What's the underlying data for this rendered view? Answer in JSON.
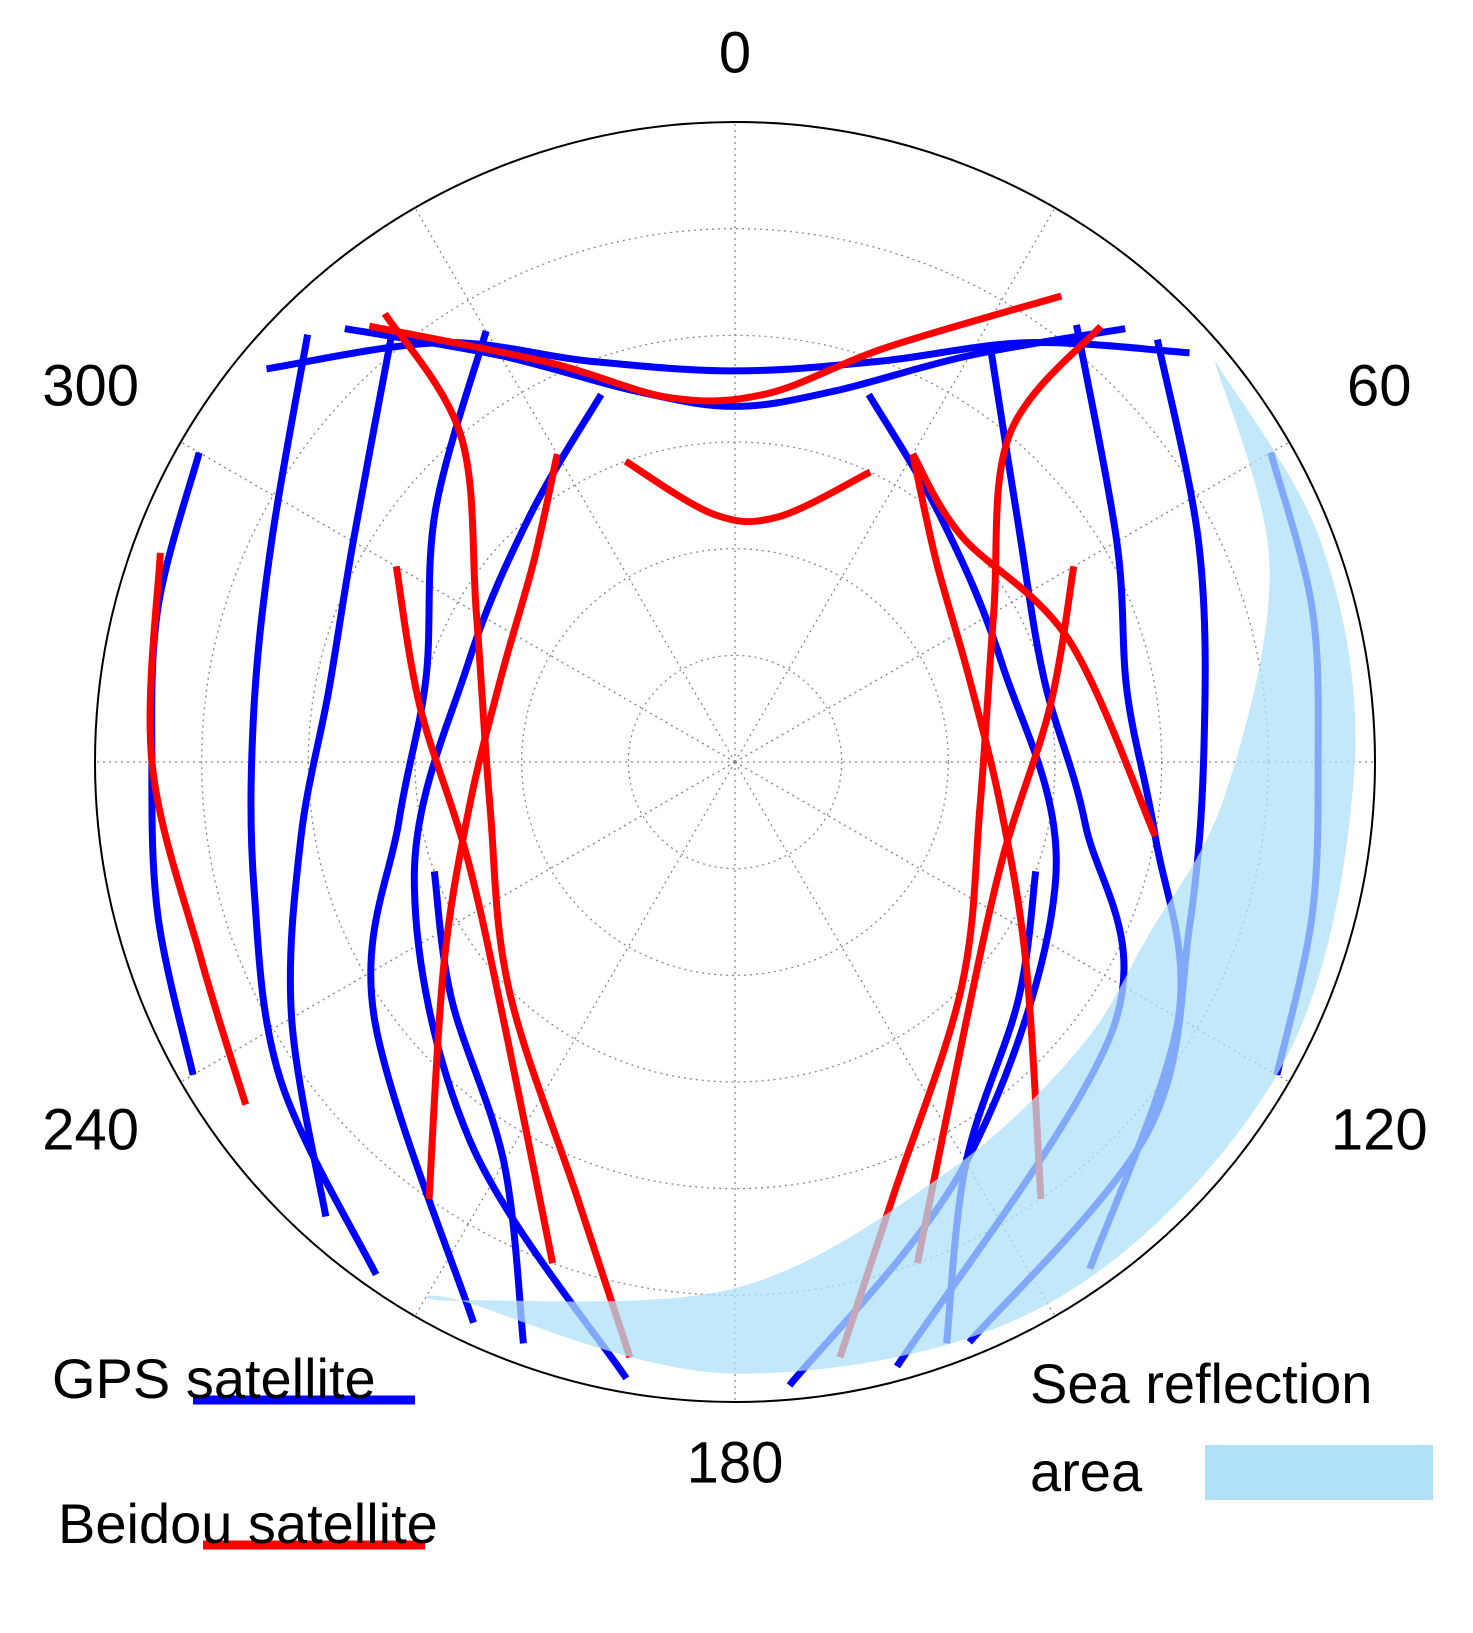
{
  "chart_data": {
    "type": "polar",
    "rlim": [
      90,
      0
    ],
    "rticks": [
      15,
      30,
      45,
      60,
      75
    ],
    "thetagrid": [
      0,
      30,
      60,
      90,
      120,
      150,
      180,
      210,
      240,
      270,
      300,
      330
    ],
    "thetaticks": [
      0,
      60,
      120,
      180,
      240,
      300
    ],
    "series": [
      {
        "name": "GPS satellite",
        "color": "#0000ff",
        "tracks": [
          {
            "azimuth": [
              318,
              330,
              345,
              0,
              15,
              30,
              42
            ],
            "elevation": [
              8,
              24,
              36,
              40,
              36,
              24,
              8
            ]
          },
          {
            "azimuth": [
              310,
              325,
              340,
              0,
              20,
              35,
              48
            ],
            "elevation": [
              4,
              18,
              30,
              35,
              30,
              18,
              4
            ]
          },
          {
            "azimuth": [
              322,
              300,
              280,
              260,
              240,
              222
            ],
            "elevation": [
              12,
              28,
              32,
              28,
              18,
              4
            ]
          },
          {
            "azimuth": [
              315,
              295,
              275,
              255,
              235,
              215
            ],
            "elevation": [
              5,
              18,
              22,
              20,
              12,
              2
            ]
          },
          {
            "azimuth": [
              330,
              310,
              285,
              260,
              235,
              205
            ],
            "elevation": [
              20,
              35,
              45,
              42,
              28,
              3
            ]
          },
          {
            "azimuth": [
              38,
              60,
              80,
              100,
              120,
              145
            ],
            "elevation": [
              12,
              28,
              34,
              30,
              18,
              3
            ]
          },
          {
            "azimuth": [
              45,
              65,
              88,
              110,
              132,
              158
            ],
            "elevation": [
              6,
              18,
              24,
              22,
              12,
              2
            ]
          },
          {
            "azimuth": [
              32,
              50,
              75,
              100,
              125,
              165
            ],
            "elevation": [
              22,
              38,
              45,
              40,
              25,
              2
            ]
          },
          {
            "azimuth": [
              20,
              40,
              70,
              110,
              150,
              175
            ],
            "elevation": [
              35,
              45,
              50,
              42,
              25,
              2
            ]
          },
          {
            "azimuth": [
              340,
              320,
              290,
              250,
              215,
              190
            ],
            "elevation": [
              35,
              45,
              50,
              42,
              25,
              2
            ]
          },
          {
            "azimuth": [
              300,
              285,
              270,
              255,
              240
            ],
            "elevation": [
              3,
              6,
              8,
              6,
              2
            ]
          },
          {
            "azimuth": [
              60,
              75,
              90,
              105,
              120
            ],
            "elevation": [
              3,
              6,
              8,
              6,
              2
            ]
          },
          {
            "azimuth": [
              200,
              210,
              230,
              250
            ],
            "elevation": [
              3,
              25,
              38,
              45
            ]
          },
          {
            "azimuth": [
              160,
              150,
              130,
              110
            ],
            "elevation": [
              3,
              25,
              38,
              45
            ]
          }
        ]
      },
      {
        "name": "Beidou satellite",
        "color": "#ff0000",
        "tracks": [
          {
            "azimuth": [
              320,
              335,
              350,
              5,
              20,
              35
            ],
            "elevation": [
              10,
              28,
              38,
              38,
              28,
              10
            ]
          },
          {
            "azimuth": [
              322,
              320,
              300,
              260,
              225,
              200,
              190
            ],
            "elevation": [
              10,
              30,
              48,
              55,
              45,
              25,
              5
            ]
          },
          {
            "azimuth": [
              40,
              40,
              60,
              100,
              135,
              160,
              170
            ],
            "elevation": [
              10,
              30,
              48,
              55,
              45,
              25,
              5
            ]
          },
          {
            "azimuth": [
              300,
              280,
              250,
              220,
              200
            ],
            "elevation": [
              35,
              45,
              50,
              40,
              15
            ]
          },
          {
            "azimuth": [
              60,
              80,
              110,
              140,
              160
            ],
            "elevation": [
              35,
              45,
              50,
              40,
              15
            ]
          },
          {
            "azimuth": [
              340,
              355,
              10,
              25
            ],
            "elevation": [
              45,
              55,
              55,
              45
            ]
          },
          {
            "azimuth": [
              290,
              270,
              250,
              235
            ],
            "elevation": [
              4,
              8,
              10,
              6
            ]
          },
          {
            "azimuth": [
              30,
              45,
              70,
              100
            ],
            "elevation": [
              40,
              45,
              40,
              30
            ]
          },
          {
            "azimuth": [
              330,
              315,
              290,
              260,
              235,
              215
            ],
            "elevation": [
              40,
              50,
              55,
              52,
              40,
              15
            ]
          },
          {
            "azimuth": [
              30,
              45,
              70,
              100,
              125,
              145
            ],
            "elevation": [
              40,
              50,
              55,
              52,
              40,
              15
            ]
          }
        ]
      }
    ],
    "area": {
      "name": "Sea reflection area",
      "color": "#aee0f7",
      "azimuth": [
        50,
        70,
        92,
        120,
        150,
        180,
        207,
        207,
        180,
        153,
        130,
        113,
        94,
        70,
        50
      ],
      "elevation": [
        2,
        2,
        3,
        2,
        2,
        4,
        5,
        5,
        16,
        25,
        27,
        27,
        21,
        10,
        2
      ]
    }
  }
}
